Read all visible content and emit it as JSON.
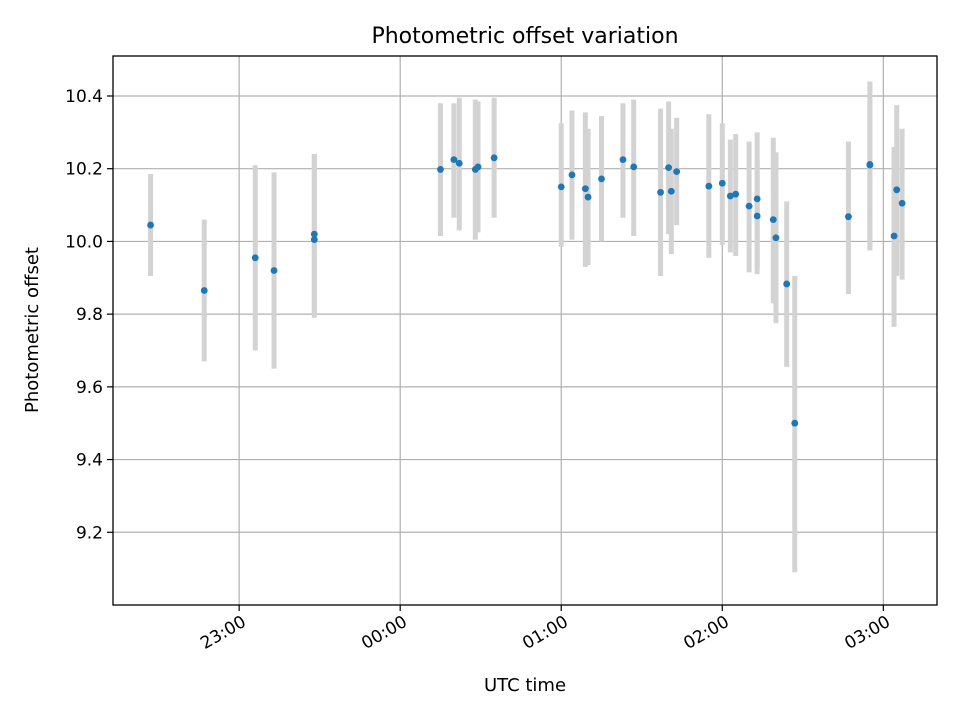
{
  "chart_data": {
    "type": "scatter",
    "title": "Photometric offset variation",
    "xlabel": "UTC time",
    "ylabel": "Photometric offset",
    "xlim": [
      "22:13",
      "03:20"
    ],
    "ylim": [
      9.0,
      10.51
    ],
    "x_ticks": [
      "23:00",
      "00:00",
      "01:00",
      "02:00",
      "03:00"
    ],
    "y_ticks": [
      "9.2",
      "9.4",
      "9.6",
      "9.8",
      "10.0",
      "10.2",
      "10.4"
    ],
    "grid": true,
    "colors": {
      "point": "#1f77b4",
      "errorbar": "#d3d3d3"
    },
    "points": [
      {
        "time": "22:27",
        "y": 10.045,
        "lo": 9.905,
        "hi": 10.185
      },
      {
        "time": "22:47",
        "y": 9.865,
        "lo": 9.67,
        "hi": 10.06
      },
      {
        "time": "23:06",
        "y": 9.955,
        "lo": 9.7,
        "hi": 10.21
      },
      {
        "time": "23:13",
        "y": 9.92,
        "lo": 9.65,
        "hi": 10.19
      },
      {
        "time": "23:28",
        "y": 10.005,
        "lo": 9.79,
        "hi": 10.24
      },
      {
        "time": "23:28",
        "y": 10.02,
        "lo": 9.8,
        "hi": 10.24
      },
      {
        "time": "00:15",
        "y": 10.198,
        "lo": 10.015,
        "hi": 10.38
      },
      {
        "time": "00:20",
        "y": 10.225,
        "lo": 10.065,
        "hi": 10.38
      },
      {
        "time": "00:22",
        "y": 10.215,
        "lo": 10.03,
        "hi": 10.395
      },
      {
        "time": "00:28",
        "y": 10.198,
        "lo": 10.005,
        "hi": 10.39
      },
      {
        "time": "00:29",
        "y": 10.205,
        "lo": 10.025,
        "hi": 10.385
      },
      {
        "time": "00:35",
        "y": 10.23,
        "lo": 10.065,
        "hi": 10.395
      },
      {
        "time": "01:00",
        "y": 10.15,
        "lo": 9.985,
        "hi": 10.325
      },
      {
        "time": "01:04",
        "y": 10.183,
        "lo": 10.005,
        "hi": 10.36
      },
      {
        "time": "01:09",
        "y": 10.145,
        "lo": 9.93,
        "hi": 10.355
      },
      {
        "time": "01:10",
        "y": 10.122,
        "lo": 9.935,
        "hi": 10.31
      },
      {
        "time": "01:15",
        "y": 10.172,
        "lo": 10.0,
        "hi": 10.345
      },
      {
        "time": "01:23",
        "y": 10.225,
        "lo": 10.065,
        "hi": 10.38
      },
      {
        "time": "01:27",
        "y": 10.205,
        "lo": 10.015,
        "hi": 10.39
      },
      {
        "time": "01:37",
        "y": 10.135,
        "lo": 9.905,
        "hi": 10.365
      },
      {
        "time": "01:40",
        "y": 10.203,
        "lo": 10.02,
        "hi": 10.385
      },
      {
        "time": "01:41",
        "y": 10.138,
        "lo": 9.965,
        "hi": 10.31
      },
      {
        "time": "01:43",
        "y": 10.192,
        "lo": 10.045,
        "hi": 10.34
      },
      {
        "time": "01:55",
        "y": 10.152,
        "lo": 9.955,
        "hi": 10.35
      },
      {
        "time": "02:00",
        "y": 10.16,
        "lo": 9.99,
        "hi": 10.325
      },
      {
        "time": "02:03",
        "y": 10.125,
        "lo": 9.97,
        "hi": 10.28
      },
      {
        "time": "02:05",
        "y": 10.13,
        "lo": 9.96,
        "hi": 10.295
      },
      {
        "time": "02:10",
        "y": 10.097,
        "lo": 9.915,
        "hi": 10.275
      },
      {
        "time": "02:13",
        "y": 10.117,
        "lo": 9.93,
        "hi": 10.3
      },
      {
        "time": "02:13",
        "y": 10.07,
        "lo": 9.91,
        "hi": 10.225
      },
      {
        "time": "02:19",
        "y": 10.06,
        "lo": 9.83,
        "hi": 10.285
      },
      {
        "time": "02:20",
        "y": 10.01,
        "lo": 9.775,
        "hi": 10.245
      },
      {
        "time": "02:24",
        "y": 9.883,
        "lo": 9.655,
        "hi": 10.11
      },
      {
        "time": "02:27",
        "y": 9.5,
        "lo": 9.09,
        "hi": 9.905
      },
      {
        "time": "02:47",
        "y": 10.068,
        "lo": 9.855,
        "hi": 10.275
      },
      {
        "time": "02:55",
        "y": 10.21,
        "lo": 9.975,
        "hi": 10.44
      },
      {
        "time": "02:55",
        "y": 10.212,
        "lo": 9.98,
        "hi": 10.44
      },
      {
        "time": "03:04",
        "y": 10.015,
        "lo": 9.765,
        "hi": 10.26
      },
      {
        "time": "03:05",
        "y": 10.142,
        "lo": 9.905,
        "hi": 10.375
      },
      {
        "time": "03:07",
        "y": 10.105,
        "lo": 9.895,
        "hi": 10.31
      }
    ]
  }
}
